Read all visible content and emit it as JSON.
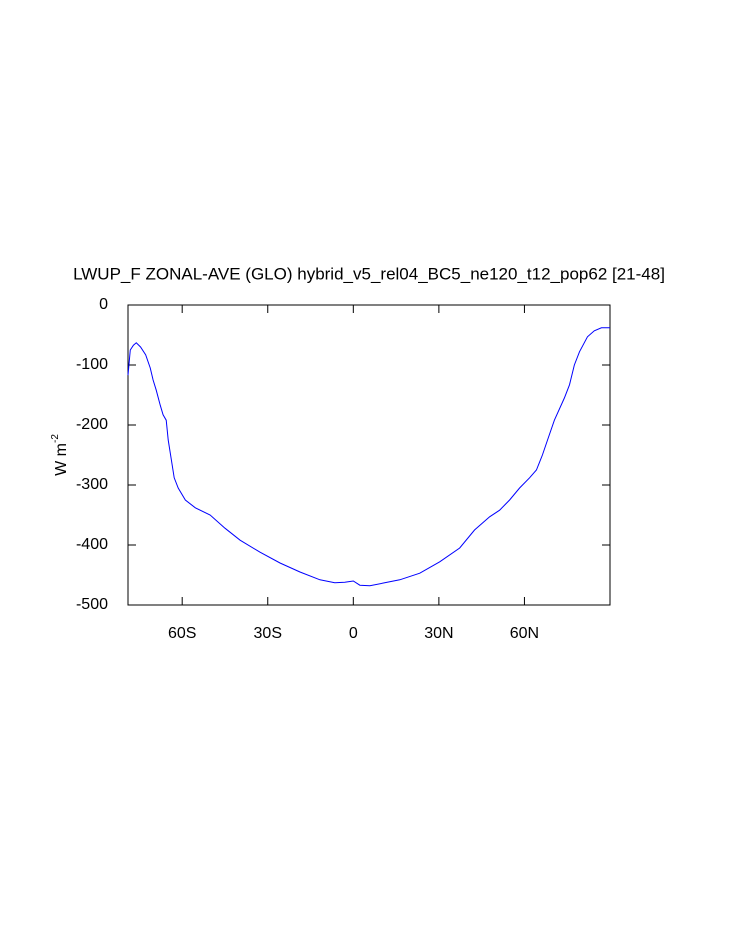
{
  "chart_data": {
    "type": "line",
    "title": "LWUP_F ZONAL-AVE (GLO) hybrid_v5_rel04_BC5_ne120_t12_pop62 [21-48]",
    "ylabel": "W m",
    "ylabel_superscript": "-2",
    "xlim": [
      -79,
      90
    ],
    "ylim": [
      -500,
      0
    ],
    "xticks": [
      {
        "value": -60,
        "label": "60S"
      },
      {
        "value": -30,
        "label": "30S"
      },
      0,
      {
        "value": 30,
        "label": "30N"
      },
      {
        "value": 60,
        "label": "60N"
      }
    ],
    "yticks": [
      -500,
      -400,
      -300,
      -200,
      -100,
      0
    ],
    "grid": false,
    "series": [
      {
        "color": "#0000ff",
        "x": [
          -79,
          -78.2,
          -77.1,
          -76.1,
          -74.6,
          -72.8,
          -71.2,
          -70.2,
          -69.1,
          -67.7,
          -66.7,
          -65.6,
          -64.9,
          -63.8,
          -62.8,
          -61.4,
          -58.9,
          -55.4,
          -50.2,
          -45,
          -39.7,
          -32.7,
          -25.7,
          -18.7,
          -11.7,
          -6.5,
          -3,
          0,
          2.3,
          5.8,
          11,
          16.3,
          23.3,
          30.3,
          37.3,
          42.5,
          47.8,
          51.3,
          54.8,
          58.3,
          61.8,
          64.2,
          65.3,
          66.3,
          68.1,
          70.5,
          74,
          75.8,
          77.5,
          79.3,
          82.1,
          84.5,
          87,
          90
        ],
        "values": [
          -117,
          -75,
          -67,
          -63,
          -70,
          -83,
          -105,
          -125,
          -142,
          -167,
          -183,
          -192,
          -225,
          -258,
          -288,
          -305,
          -325,
          -338,
          -350,
          -372,
          -392,
          -412,
          -430,
          -445,
          -458,
          -463,
          -462,
          -460,
          -467,
          -468,
          -463,
          -458,
          -447,
          -428,
          -405,
          -375,
          -353,
          -342,
          -325,
          -305,
          -288,
          -275,
          -262,
          -250,
          -225,
          -192,
          -155,
          -133,
          -100,
          -78,
          -53,
          -43,
          -38,
          -38
        ]
      }
    ]
  }
}
